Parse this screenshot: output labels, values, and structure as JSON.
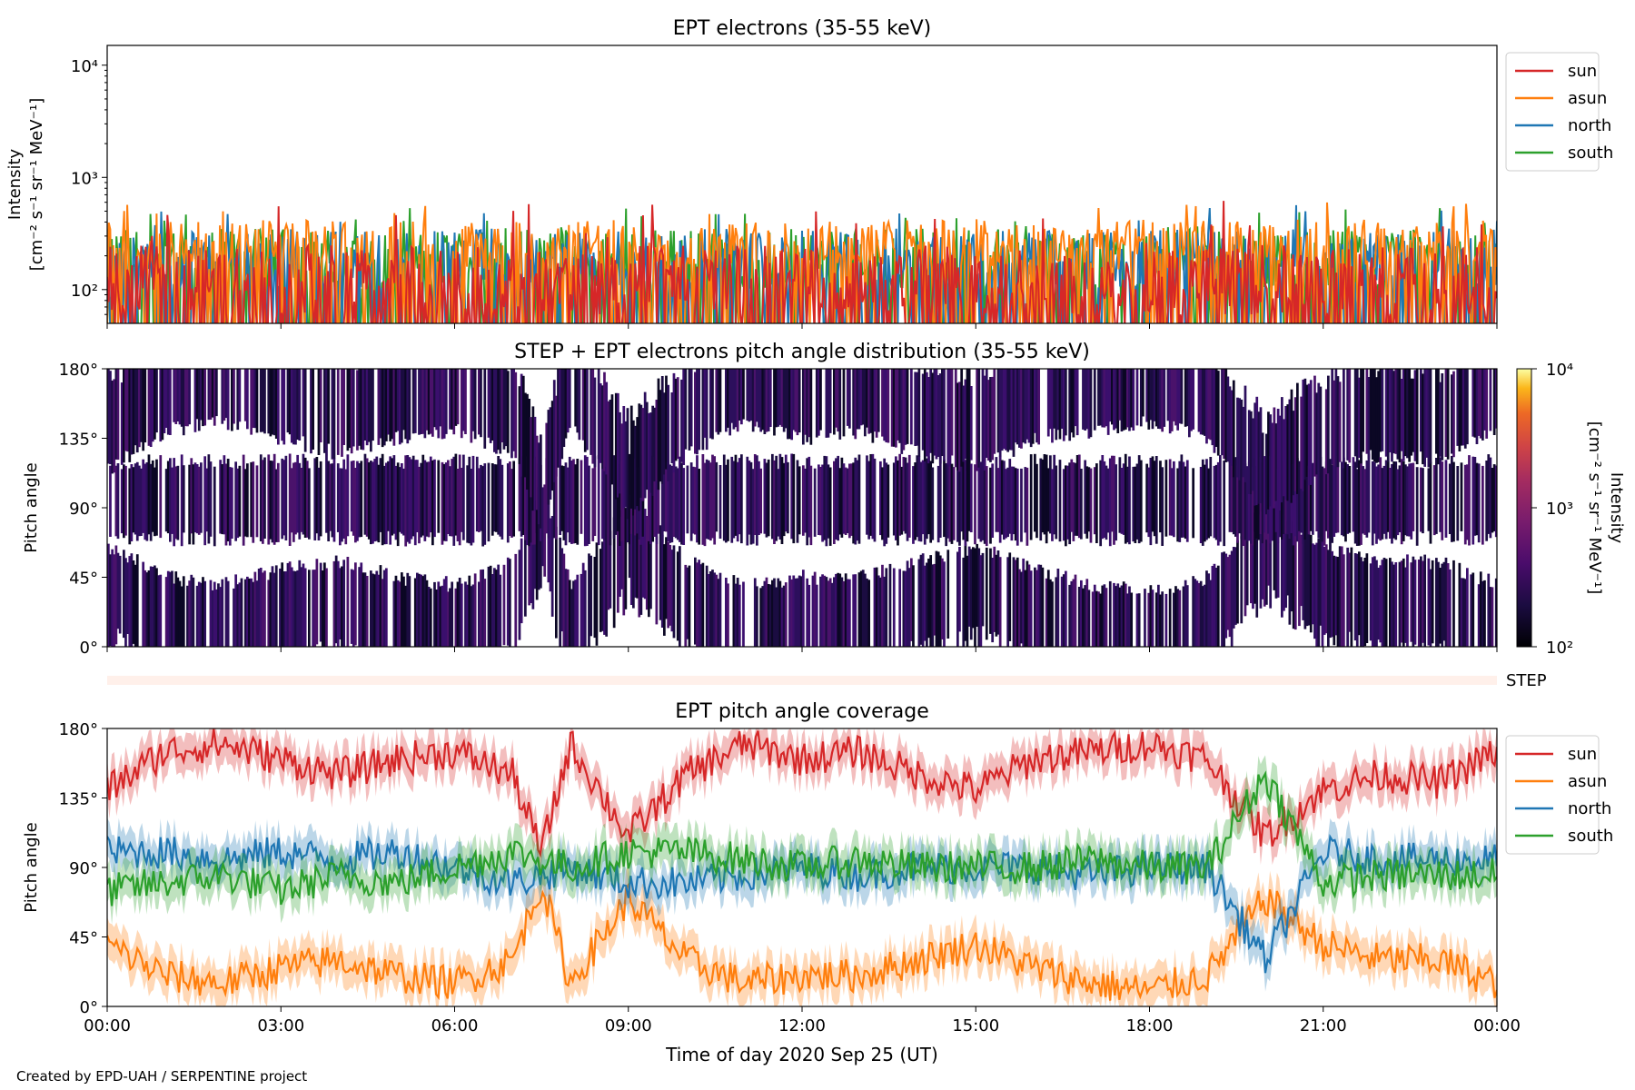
{
  "footer_text": "Created by EPD-UAH / SERPENTINE project",
  "colors": {
    "sun": "#d62728",
    "asun": "#ff7f0e",
    "north": "#1f77b4",
    "south": "#2ca02c",
    "step_bar": "#fff0ea"
  },
  "chart_data": [
    {
      "type": "line",
      "title": "EPT electrons (35-55 keV)",
      "xlabel": "",
      "ylabel": "Intensity",
      "ylabel_units": "[cm⁻² s⁻¹ sr⁻¹ MeV⁻¹]",
      "yscale": "log",
      "ylim": [
        50,
        15000
      ],
      "yticks": [
        "10²",
        "10³",
        "10⁴"
      ],
      "ytick_values": [
        100,
        1000,
        10000
      ],
      "xlim_hours": [
        0,
        24
      ],
      "legend_position": "right",
      "series": [
        {
          "name": "sun",
          "typical_range": [
            60,
            250
          ],
          "max": 620
        },
        {
          "name": "asun",
          "typical_range": [
            150,
            420
          ],
          "max": 600
        },
        {
          "name": "north",
          "typical_range": [
            100,
            350
          ],
          "max": 600
        },
        {
          "name": "south",
          "typical_range": [
            100,
            350
          ],
          "max": 540
        }
      ]
    },
    {
      "type": "heatmap",
      "title": "STEP + EPT electrons pitch angle distribution (35-55 keV)",
      "ylabel": "Pitch angle",
      "ylim": [
        0,
        180
      ],
      "yticks": [
        "0°",
        "45°",
        "90°",
        "135°",
        "180°"
      ],
      "ytick_values": [
        0,
        45,
        90,
        135,
        180
      ],
      "xlim_hours": [
        0,
        24
      ],
      "colorbar": {
        "label": "Intensity",
        "units": "[cm⁻² s⁻¹ sr⁻¹ MeV⁻¹]",
        "scale": "log",
        "range": [
          100,
          10000
        ],
        "ticks": [
          "10²",
          "10³",
          "10⁴"
        ],
        "colormap": "inferno"
      },
      "step_label": "STEP"
    },
    {
      "type": "line",
      "title": "EPT pitch angle coverage",
      "xlabel": "Time of day 2020 Sep 25 (UT)",
      "ylabel": "Pitch angle",
      "ylim": [
        0,
        180
      ],
      "yticks": [
        "0°",
        "45°",
        "90°",
        "135°",
        "180°"
      ],
      "ytick_values": [
        0,
        45,
        90,
        135,
        180
      ],
      "xticks": [
        "00:00",
        "03:00",
        "06:00",
        "09:00",
        "12:00",
        "15:00",
        "18:00",
        "21:00",
        "00:00"
      ],
      "xtick_hours": [
        0,
        3,
        6,
        9,
        12,
        15,
        18,
        21,
        24
      ],
      "shaded_band_halfwidth": 12,
      "legend_position": "right",
      "series": [
        {
          "name": "sun",
          "x": [
            0,
            1,
            2,
            3,
            4,
            5,
            6,
            7,
            7.5,
            8,
            9,
            10,
            11,
            12,
            13,
            14,
            15,
            16,
            17,
            18,
            19,
            20,
            21,
            22,
            23,
            24
          ],
          "y": [
            140,
            165,
            170,
            160,
            150,
            160,
            165,
            150,
            100,
            170,
            110,
            150,
            170,
            160,
            165,
            150,
            140,
            160,
            165,
            170,
            160,
            110,
            140,
            150,
            145,
            165
          ]
        },
        {
          "name": "asun",
          "x": [
            0,
            1,
            2,
            3,
            4,
            5,
            6,
            7,
            7.5,
            8,
            9,
            10,
            11,
            12,
            13,
            14,
            15,
            16,
            17,
            18,
            19,
            20,
            21,
            22,
            23,
            24
          ],
          "y": [
            40,
            20,
            15,
            25,
            30,
            20,
            15,
            30,
            80,
            15,
            70,
            30,
            15,
            20,
            20,
            30,
            40,
            25,
            15,
            10,
            20,
            70,
            40,
            30,
            30,
            15
          ]
        },
        {
          "name": "north",
          "x": [
            0,
            1,
            2,
            3,
            4,
            5,
            6,
            7,
            8,
            9,
            10,
            11,
            12,
            13,
            14,
            15,
            16,
            17,
            18,
            19,
            20,
            21,
            22,
            23,
            24
          ],
          "y": [
            100,
            100,
            95,
            100,
            95,
            100,
            90,
            80,
            90,
            80,
            80,
            85,
            90,
            85,
            90,
            90,
            90,
            85,
            90,
            90,
            30,
            100,
            95,
            95,
            95
          ]
        },
        {
          "name": "south",
          "x": [
            0,
            1,
            2,
            3,
            4,
            5,
            6,
            7,
            8,
            9,
            10,
            11,
            12,
            13,
            14,
            15,
            16,
            17,
            18,
            19,
            20,
            21,
            22,
            23,
            24
          ],
          "y": [
            75,
            80,
            85,
            75,
            85,
            80,
            90,
            100,
            90,
            100,
            100,
            95,
            90,
            95,
            90,
            90,
            90,
            95,
            90,
            90,
            150,
            80,
            85,
            85,
            85
          ]
        }
      ]
    }
  ]
}
